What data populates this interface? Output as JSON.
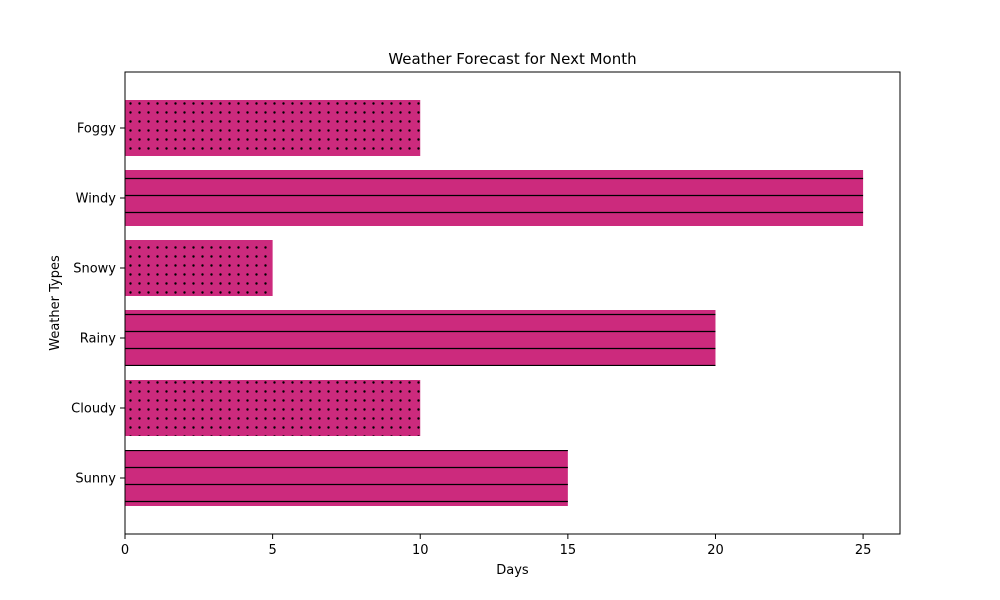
{
  "chart_data": {
    "type": "bar",
    "orientation": "horizontal",
    "title": "Weather Forecast for Next Month",
    "xlabel": "Days",
    "ylabel": "Weather Types",
    "categories": [
      "Sunny",
      "Cloudy",
      "Rainy",
      "Snowy",
      "Windy",
      "Foggy"
    ],
    "values": [
      15,
      10,
      20,
      5,
      25,
      10
    ],
    "hatches": [
      "lines",
      "dots",
      "lines",
      "dots",
      "lines",
      "dots"
    ],
    "xlim": [
      0,
      26.25
    ],
    "xticks": [
      0,
      5,
      10,
      15,
      20,
      25
    ],
    "grid": false,
    "bar_color": "#cc2a7d",
    "edge_color": "#000000"
  }
}
